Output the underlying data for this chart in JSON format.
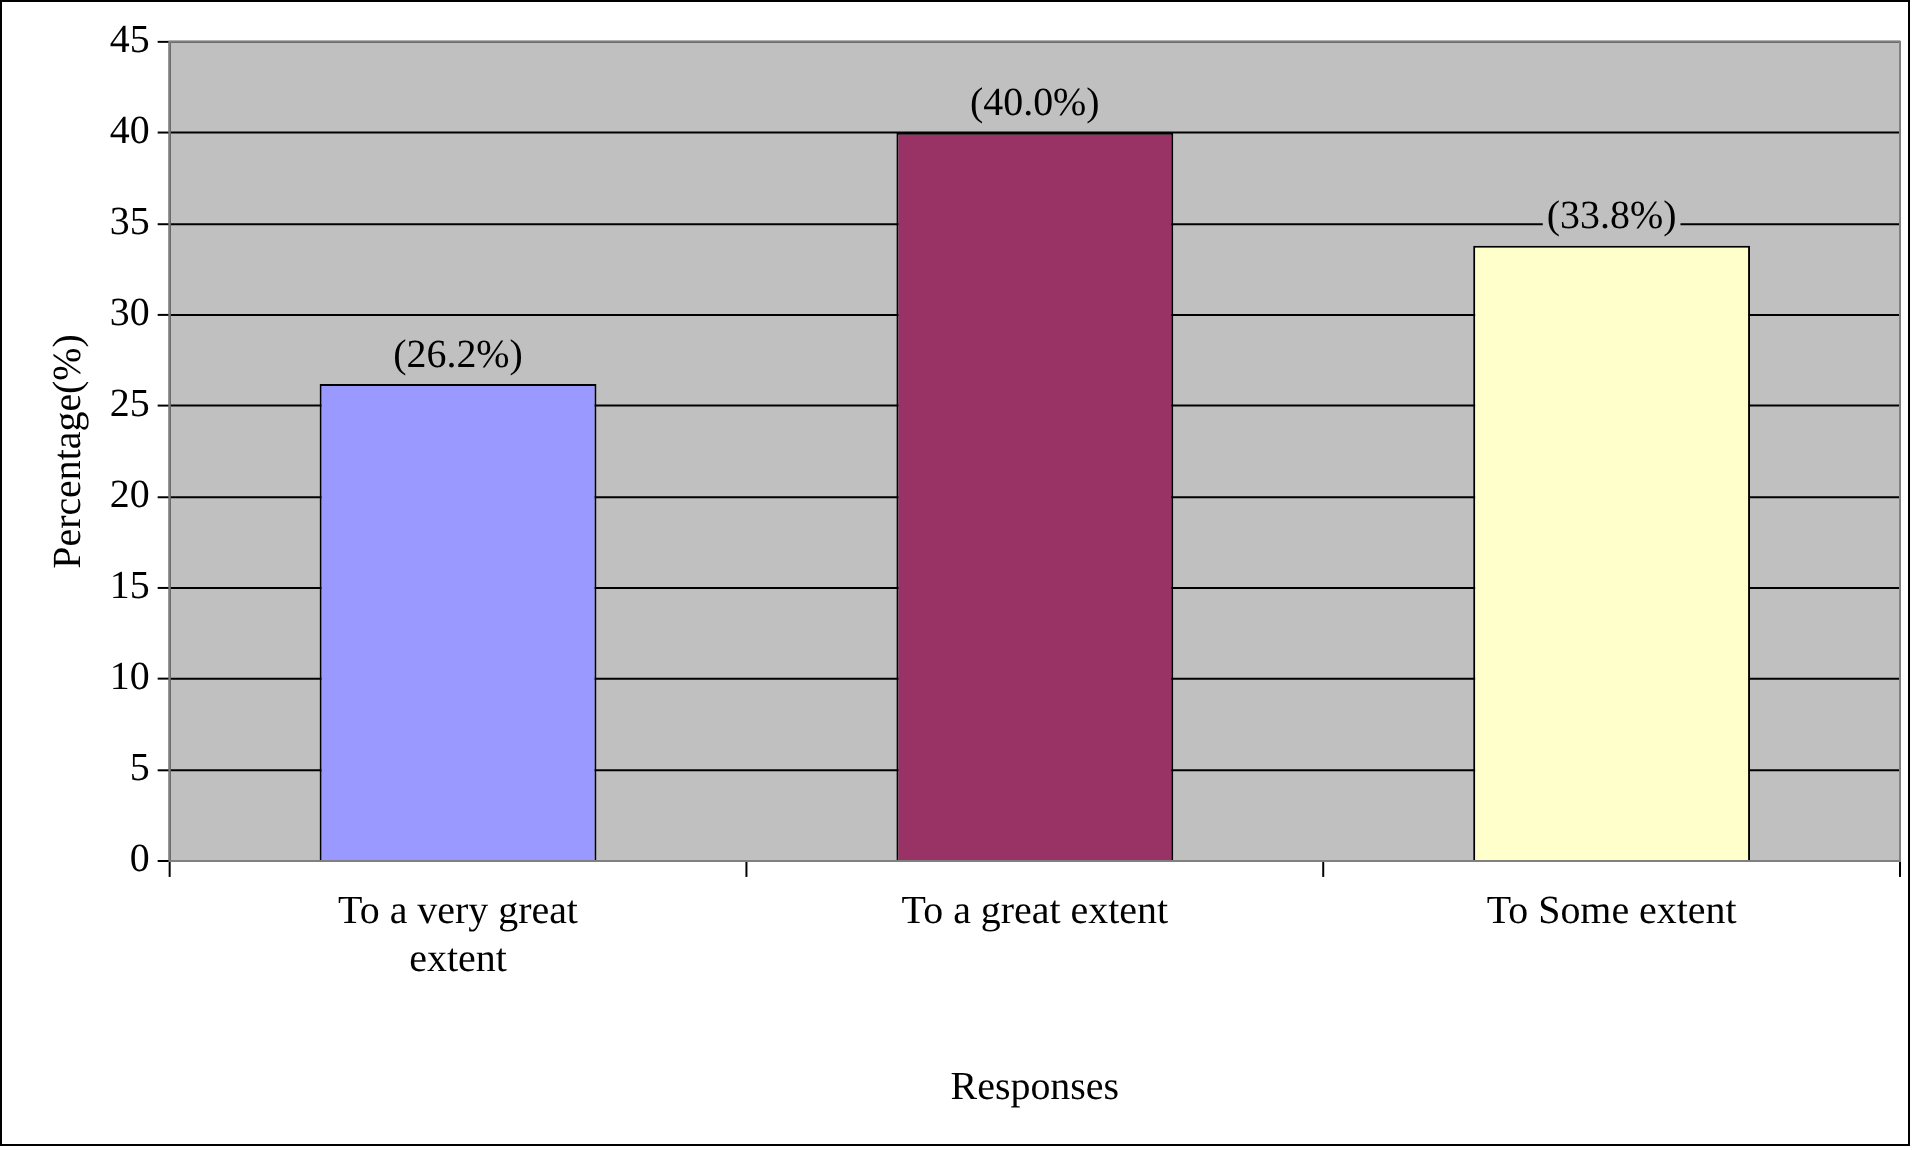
{
  "chart_data": {
    "type": "bar",
    "xlabel": "Responses",
    "ylabel": "Percentage(%)",
    "categories": [
      "To a very great extent",
      "To a great extent",
      "To Some extent"
    ],
    "values": [
      26.2,
      40.0,
      33.8
    ],
    "colors": [
      "#9999ff",
      "#993366",
      "#ffffcc"
    ],
    "value_labels": [
      "(26.2%)",
      "(40.0%)",
      "(33.8%)"
    ],
    "ylim": [
      0,
      45
    ],
    "yticks": [
      0,
      5,
      10,
      15,
      20,
      25,
      30,
      35,
      40,
      45
    ],
    "grid": "y",
    "legend": false
  }
}
